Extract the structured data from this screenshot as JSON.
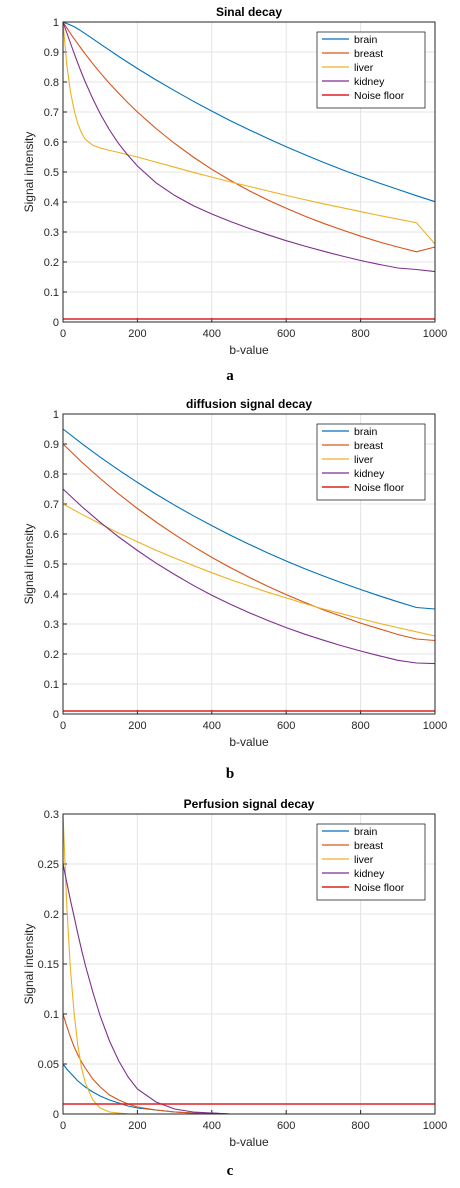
{
  "chart_data": [
    {
      "type": "line",
      "title": "Sinal decay",
      "xlabel": "b-value",
      "ylabel": "Signal intensity",
      "caption": "a",
      "xlim": [
        0,
        1000
      ],
      "ylim": [
        0,
        1
      ],
      "xticks": [
        "0",
        "200",
        "400",
        "600",
        "800",
        "1000"
      ],
      "yticks": [
        "0",
        "0.1",
        "0.2",
        "0.3",
        "0.4",
        "0.5",
        "0.6",
        "0.7",
        "0.8",
        "0.9",
        "1"
      ],
      "grid": true,
      "legend_position": "top-right",
      "x": [
        0,
        10,
        20,
        30,
        40,
        50,
        60,
        80,
        100,
        125,
        150,
        175,
        200,
        250,
        300,
        350,
        400,
        450,
        500,
        550,
        600,
        650,
        700,
        750,
        800,
        850,
        900,
        950,
        1000
      ],
      "series": [
        {
          "name": "brain",
          "color": "#0072BD",
          "values": [
            1.0,
            0.995,
            0.99,
            0.984,
            0.977,
            0.969,
            0.961,
            0.944,
            0.927,
            0.906,
            0.885,
            0.865,
            0.845,
            0.807,
            0.771,
            0.736,
            0.703,
            0.671,
            0.641,
            0.612,
            0.584,
            0.558,
            0.532,
            0.508,
            0.485,
            0.463,
            0.442,
            0.421,
            0.401
          ]
        },
        {
          "name": "breast",
          "color": "#D95319",
          "values": [
            1.0,
            0.981,
            0.962,
            0.944,
            0.927,
            0.91,
            0.893,
            0.861,
            0.831,
            0.795,
            0.762,
            0.73,
            0.7,
            0.645,
            0.595,
            0.55,
            0.509,
            0.472,
            0.438,
            0.407,
            0.379,
            0.353,
            0.329,
            0.307,
            0.286,
            0.267,
            0.25,
            0.234,
            0.25
          ]
        },
        {
          "name": "liver",
          "color": "#EDB120",
          "values": [
            1.0,
            0.86,
            0.768,
            0.705,
            0.66,
            0.63,
            0.609,
            0.589,
            0.58,
            0.572,
            0.565,
            0.557,
            0.55,
            0.533,
            0.516,
            0.499,
            0.483,
            0.467,
            0.452,
            0.437,
            0.422,
            0.408,
            0.394,
            0.381,
            0.368,
            0.355,
            0.343,
            0.331,
            0.26
          ]
        },
        {
          "name": "kidney",
          "color": "#7E2F8E",
          "values": [
            1.0,
            0.965,
            0.93,
            0.895,
            0.862,
            0.83,
            0.8,
            0.744,
            0.694,
            0.64,
            0.594,
            0.555,
            0.52,
            0.464,
            0.422,
            0.388,
            0.36,
            0.335,
            0.312,
            0.291,
            0.271,
            0.253,
            0.236,
            0.22,
            0.205,
            0.192,
            0.18,
            0.175,
            0.168
          ]
        },
        {
          "name": "Noise floor",
          "color": "#E02020",
          "values": [
            0.01,
            0.01,
            0.01,
            0.01,
            0.01,
            0.01,
            0.01,
            0.01,
            0.01,
            0.01,
            0.01,
            0.01,
            0.01,
            0.01,
            0.01,
            0.01,
            0.01,
            0.01,
            0.01,
            0.01,
            0.01,
            0.01,
            0.01,
            0.01,
            0.01,
            0.01,
            0.01,
            0.01,
            0.01
          ]
        }
      ]
    },
    {
      "type": "line",
      "title": "diffusion  signal decay",
      "xlabel": "b-value",
      "ylabel": "Signal intensity",
      "caption": "b",
      "xlim": [
        0,
        1000
      ],
      "ylim": [
        0,
        1
      ],
      "xticks": [
        "0",
        "200",
        "400",
        "600",
        "800",
        "1000"
      ],
      "yticks": [
        "0",
        "0.1",
        "0.2",
        "0.3",
        "0.4",
        "0.5",
        "0.6",
        "0.7",
        "0.8",
        "0.9",
        "1"
      ],
      "grid": true,
      "legend_position": "top-right",
      "x": [
        0,
        50,
        100,
        150,
        200,
        250,
        300,
        350,
        400,
        450,
        500,
        550,
        600,
        650,
        700,
        750,
        800,
        850,
        900,
        950,
        1000
      ],
      "series": [
        {
          "name": "brain",
          "color": "#0072BD",
          "values": [
            0.95,
            0.902,
            0.856,
            0.813,
            0.772,
            0.733,
            0.696,
            0.661,
            0.628,
            0.596,
            0.566,
            0.537,
            0.51,
            0.484,
            0.46,
            0.437,
            0.415,
            0.394,
            0.374,
            0.355,
            0.35
          ]
        },
        {
          "name": "breast",
          "color": "#D95319",
          "values": [
            0.9,
            0.84,
            0.785,
            0.733,
            0.685,
            0.64,
            0.598,
            0.559,
            0.522,
            0.488,
            0.456,
            0.426,
            0.398,
            0.372,
            0.347,
            0.325,
            0.303,
            0.284,
            0.265,
            0.25,
            0.245
          ]
        },
        {
          "name": "liver",
          "color": "#EDB120",
          "values": [
            0.7,
            0.666,
            0.634,
            0.603,
            0.574,
            0.546,
            0.52,
            0.495,
            0.471,
            0.448,
            0.427,
            0.406,
            0.387,
            0.368,
            0.35,
            0.334,
            0.318,
            0.302,
            0.288,
            0.274,
            0.26
          ]
        },
        {
          "name": "kidney",
          "color": "#7E2F8E",
          "values": [
            0.75,
            0.692,
            0.639,
            0.59,
            0.545,
            0.503,
            0.465,
            0.429,
            0.396,
            0.366,
            0.338,
            0.312,
            0.288,
            0.266,
            0.246,
            0.227,
            0.21,
            0.194,
            0.179,
            0.17,
            0.168
          ]
        },
        {
          "name": "Noise floor",
          "color": "#E02020",
          "values": [
            0.01,
            0.01,
            0.01,
            0.01,
            0.01,
            0.01,
            0.01,
            0.01,
            0.01,
            0.01,
            0.01,
            0.01,
            0.01,
            0.01,
            0.01,
            0.01,
            0.01,
            0.01,
            0.01,
            0.01,
            0.01
          ]
        }
      ]
    },
    {
      "type": "line",
      "title": "Perfusion  signal decay",
      "xlabel": "b-value",
      "ylabel": "Signal intensity",
      "caption": "c",
      "xlim": [
        0,
        1000
      ],
      "ylim": [
        0,
        0.3
      ],
      "xticks": [
        "0",
        "200",
        "400",
        "600",
        "800",
        "1000"
      ],
      "yticks": [
        "0",
        "0.05",
        "0.1",
        "0.15",
        "0.2",
        "0.25",
        "0.3"
      ],
      "grid": true,
      "legend_position": "top-right",
      "x": [
        0,
        10,
        20,
        30,
        40,
        50,
        60,
        80,
        100,
        125,
        150,
        175,
        200,
        250,
        300,
        350,
        400,
        450,
        500,
        600,
        700,
        800,
        900,
        1000
      ],
      "series": [
        {
          "name": "brain",
          "color": "#0072BD",
          "values": [
            0.05,
            0.045,
            0.041,
            0.037,
            0.033,
            0.03,
            0.027,
            0.022,
            0.018,
            0.014,
            0.011,
            0.008,
            0.006,
            0.004,
            0.002,
            0.001,
            0.001,
            0.0,
            0.0,
            0.0,
            0.0,
            0.0,
            0.0,
            0.0
          ]
        },
        {
          "name": "breast",
          "color": "#D95319",
          "values": [
            0.1,
            0.088,
            0.077,
            0.067,
            0.059,
            0.052,
            0.046,
            0.035,
            0.027,
            0.019,
            0.014,
            0.01,
            0.007,
            0.004,
            0.002,
            0.001,
            0.0,
            0.0,
            0.0,
            0.0,
            0.0,
            0.0,
            0.0,
            0.0
          ]
        },
        {
          "name": "liver",
          "color": "#EDB120",
          "values": [
            0.3,
            0.21,
            0.145,
            0.1,
            0.068,
            0.046,
            0.031,
            0.014,
            0.006,
            0.002,
            0.001,
            0.0,
            0.0,
            0.0,
            0.0,
            0.0,
            0.0,
            0.0,
            0.0,
            0.0,
            0.0,
            0.0,
            0.0,
            0.0
          ]
        },
        {
          "name": "kidney",
          "color": "#7E2F8E",
          "values": [
            0.25,
            0.232,
            0.214,
            0.197,
            0.18,
            0.164,
            0.149,
            0.122,
            0.098,
            0.073,
            0.053,
            0.037,
            0.025,
            0.012,
            0.005,
            0.002,
            0.001,
            0.0,
            0.0,
            0.0,
            0.0,
            0.0,
            0.0,
            0.0
          ]
        },
        {
          "name": "Noise floor",
          "color": "#E02020",
          "values": [
            0.01,
            0.01,
            0.01,
            0.01,
            0.01,
            0.01,
            0.01,
            0.01,
            0.01,
            0.01,
            0.01,
            0.01,
            0.01,
            0.01,
            0.01,
            0.01,
            0.01,
            0.01,
            0.01,
            0.01,
            0.01,
            0.01,
            0.01,
            0.01
          ]
        }
      ]
    }
  ]
}
